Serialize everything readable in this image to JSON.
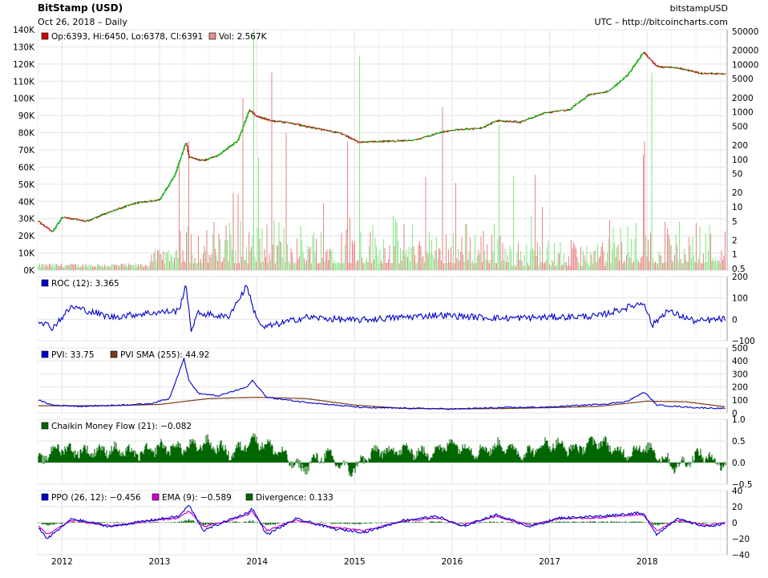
{
  "header": {
    "title": "BitStamp (USD)",
    "subtitle": "Oct 26, 2018 – Daily",
    "source": "bitstampUSD",
    "attribution": "UTC – http://bitcoincharts.com"
  },
  "legends": {
    "price": "Op:6393, Hi:6450, Lo:6378, Cl:6391",
    "volume": "Vol: 2.567K",
    "roc": "ROC (12): 3.365",
    "pvi": "PVI: 33.75",
    "pvi_sma": "PVI SMA (255): 44.92",
    "cmf": "Chaikin Money Flow (21): −0.082",
    "ppo": "PPO (26, 12): −0.456",
    "ema": "EMA (9): −0.589",
    "divergence": "Divergence: 0.133"
  },
  "colors": {
    "up": "#8ee88e",
    "down": "#e88e8e",
    "price_up": "#00aa00",
    "price_down": "#cc0000",
    "roc": "#0000cc",
    "pvi": "#0000cc",
    "pvi_sma": "#7a3a1a",
    "cmf": "#006600",
    "ppo": "#0000cc",
    "ema": "#cc00cc",
    "divergence": "#006600",
    "grid": "#e4e4e4"
  },
  "chart_data": [
    {
      "type": "line",
      "name": "price",
      "title": "BitStamp (USD)",
      "scale": "log",
      "x_ticks": [
        "2012",
        "2013",
        "2014",
        "2015",
        "2016",
        "2017",
        "2018"
      ],
      "right_ticks": [
        "50000",
        "20000",
        "10000",
        "5000",
        "2000",
        "1000",
        "500",
        "200",
        "100",
        "50",
        "20",
        "10",
        "5",
        "2",
        "1",
        "0.5"
      ],
      "left_ticks": [
        "140K",
        "130K",
        "120K",
        "110K",
        "100K",
        "90K",
        "80K",
        "70K",
        "60K",
        "50K",
        "40K",
        "30K",
        "20K",
        "10K",
        "0K"
      ],
      "x": [
        2011.75,
        2011.9,
        2012.0,
        2012.25,
        2012.5,
        2012.75,
        2013.0,
        2013.15,
        2013.27,
        2013.3,
        2013.45,
        2013.6,
        2013.8,
        2013.92,
        2014.0,
        2014.15,
        2014.35,
        2014.6,
        2014.85,
        2015.04,
        2015.3,
        2015.6,
        2015.9,
        2016.1,
        2016.3,
        2016.45,
        2016.7,
        2016.95,
        2017.2,
        2017.4,
        2017.6,
        2017.8,
        2017.96,
        2018.1,
        2018.3,
        2018.55,
        2018.82
      ],
      "values": [
        5,
        3,
        6,
        5,
        8,
        12,
        14,
        45,
        230,
        110,
        95,
        120,
        250,
        1100,
        800,
        650,
        580,
        450,
        360,
        230,
        240,
        250,
        380,
        430,
        450,
        650,
        610,
        960,
        1100,
        2300,
        2700,
        6000,
        18000,
        9000,
        8500,
        6500,
        6391
      ],
      "ylim": [
        0.5,
        50000
      ]
    },
    {
      "type": "bar",
      "name": "volume",
      "ylim": [
        0,
        140000
      ],
      "spikes_x": [
        2013.3,
        2013.85,
        2013.97,
        2014.15,
        2014.3,
        2014.93,
        2015.05,
        2015.9,
        2016.48,
        2017.97,
        2018.05
      ],
      "spikes_values": [
        75000,
        100000,
        140000,
        115000,
        80000,
        75000,
        125000,
        95000,
        85000,
        75000,
        115000
      ]
    },
    {
      "type": "line",
      "name": "ROC (12)",
      "ylim": [
        -100,
        200
      ],
      "right_ticks": [
        "200",
        "100",
        "0",
        "−100"
      ],
      "x": [
        2011.75,
        2011.9,
        2012.1,
        2012.5,
        2012.9,
        2013.2,
        2013.27,
        2013.32,
        2013.4,
        2013.7,
        2013.9,
        2013.95,
        2014.05,
        2014.5,
        2015.0,
        2015.5,
        2015.85,
        2016.5,
        2017.0,
        2017.5,
        2017.9,
        2017.97,
        2018.05,
        2018.2,
        2018.5,
        2018.82
      ],
      "values": [
        0,
        -40,
        60,
        10,
        30,
        40,
        170,
        -50,
        30,
        10,
        160,
        60,
        -40,
        10,
        -5,
        10,
        20,
        5,
        10,
        15,
        70,
        80,
        -30,
        40,
        -10,
        3.365
      ]
    },
    {
      "type": "line",
      "name": "PVI",
      "ylim": [
        0,
        500
      ],
      "right_ticks": [
        "500",
        "400",
        "300",
        "200",
        "100",
        "0"
      ],
      "pvi_x": [
        2011.75,
        2011.9,
        2012.2,
        2012.6,
        2012.9,
        2013.1,
        2013.25,
        2013.3,
        2013.4,
        2013.6,
        2013.9,
        2013.95,
        2014.1,
        2014.4,
        2014.8,
        2015.1,
        2015.6,
        2016.0,
        2016.5,
        2017.0,
        2017.6,
        2017.8,
        2017.97,
        2018.1,
        2018.5,
        2018.82
      ],
      "pvi_values": [
        100,
        60,
        50,
        60,
        70,
        110,
        420,
        250,
        150,
        130,
        200,
        250,
        120,
        90,
        60,
        40,
        35,
        30,
        40,
        45,
        70,
        90,
        160,
        60,
        40,
        33.75
      ],
      "sma_x": [
        2011.75,
        2012.5,
        2013.0,
        2013.5,
        2014.0,
        2014.5,
        2015.0,
        2015.5,
        2016.0,
        2016.5,
        2017.0,
        2017.5,
        2018.0,
        2018.4,
        2018.82
      ],
      "sma_values": [
        55,
        55,
        65,
        110,
        120,
        110,
        60,
        35,
        30,
        33,
        40,
        50,
        90,
        85,
        44.92
      ]
    },
    {
      "type": "area",
      "name": "Chaikin Money Flow (21)",
      "ylim": [
        -0.5,
        1.0
      ],
      "right_ticks": [
        "1.0",
        "0.5",
        "0.0",
        "−0.5"
      ],
      "x": [
        2011.75,
        2011.95,
        2012.2,
        2012.5,
        2012.8,
        2013.0,
        2013.3,
        2013.5,
        2013.75,
        2013.95,
        2014.2,
        2014.45,
        2014.7,
        2014.95,
        2015.2,
        2015.5,
        2015.75,
        2016.0,
        2016.25,
        2016.5,
        2016.75,
        2017.0,
        2017.25,
        2017.5,
        2017.75,
        2018.0,
        2018.3,
        2018.55,
        2018.82
      ],
      "values": [
        0.0,
        0.35,
        0.25,
        0.3,
        0.2,
        0.35,
        0.35,
        0.45,
        0.2,
        0.55,
        0.3,
        -0.15,
        0.2,
        -0.2,
        0.25,
        0.3,
        0.2,
        0.45,
        0.25,
        0.4,
        0.2,
        0.45,
        0.3,
        0.5,
        0.2,
        0.35,
        -0.1,
        0.2,
        -0.082
      ]
    },
    {
      "type": "line",
      "name": "PPO (26, 12)",
      "ylim": [
        -40,
        40
      ],
      "right_ticks": [
        "40",
        "20",
        "0",
        "−20",
        "−40"
      ],
      "x": [
        2011.75,
        2011.85,
        2012.1,
        2012.5,
        2012.9,
        2013.2,
        2013.3,
        2013.45,
        2013.7,
        2013.9,
        2013.95,
        2014.1,
        2014.4,
        2014.8,
        2015.1,
        2015.5,
        2015.85,
        2016.1,
        2016.45,
        2016.8,
        2017.1,
        2017.5,
        2017.9,
        2017.97,
        2018.1,
        2018.3,
        2018.6,
        2018.82
      ],
      "ppo_values": [
        -5,
        -20,
        5,
        -5,
        3,
        8,
        22,
        -10,
        3,
        12,
        18,
        -15,
        5,
        -8,
        -12,
        3,
        8,
        -5,
        10,
        -5,
        6,
        8,
        12,
        10,
        -15,
        5,
        -5,
        -0.456
      ],
      "ema_values": [
        -3,
        -15,
        3,
        -4,
        2,
        6,
        15,
        -5,
        2,
        10,
        14,
        -10,
        3,
        -6,
        -10,
        2,
        6,
        -3,
        8,
        -3,
        5,
        6,
        10,
        9,
        -10,
        3,
        -3,
        -0.589
      ],
      "divergence_values": [
        0,
        -3,
        1,
        0,
        0,
        1,
        4,
        -3,
        1,
        1,
        2,
        -3,
        1,
        -1,
        -1,
        1,
        1,
        -1,
        1,
        -1,
        1,
        1,
        1,
        1,
        -3,
        1,
        -1,
        0.133
      ]
    }
  ]
}
